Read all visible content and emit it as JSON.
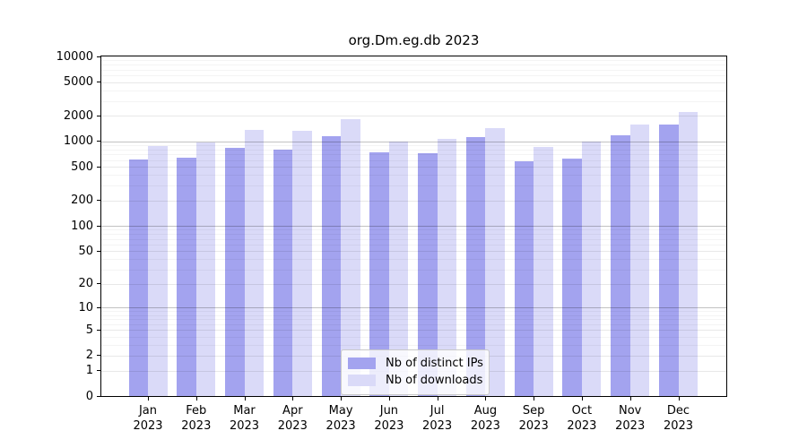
{
  "title": "org.Dm.eg.db 2023",
  "colors": {
    "spine": "#000000",
    "background": "#ffffff",
    "legend_border": "#c9c9c9",
    "distinct_ips": "#a3a3ef",
    "downloads": "#dadaf8"
  },
  "chart_data": {
    "type": "bar",
    "title": "org.Dm.eg.db 2023",
    "yscale": "log1p",
    "ylim": [
      0,
      10000
    ],
    "yticks": [
      0,
      1,
      2,
      5,
      10,
      20,
      50,
      100,
      200,
      500,
      1000,
      2000,
      5000,
      10000
    ],
    "minor_gridlines": [
      3,
      4,
      6,
      7,
      8,
      9,
      30,
      40,
      60,
      70,
      80,
      90,
      300,
      400,
      600,
      700,
      800,
      900,
      3000,
      4000,
      6000,
      7000,
      8000,
      9000
    ],
    "emphasized_gridlines": [
      10,
      100,
      1000
    ],
    "grid": true,
    "months": [
      "Jan",
      "Feb",
      "Mar",
      "Apr",
      "May",
      "Jun",
      "Jul",
      "Aug",
      "Sep",
      "Oct",
      "Nov",
      "Dec"
    ],
    "year": "2023",
    "categories": [
      "Jan 2023",
      "Feb 2023",
      "Mar 2023",
      "Apr 2023",
      "May 2023",
      "Jun 2023",
      "Jul 2023",
      "Aug 2023",
      "Sep 2023",
      "Oct 2023",
      "Nov 2023",
      "Dec 2023"
    ],
    "series": [
      {
        "name": "Nb of distinct IPs",
        "color": "#a3a3ef",
        "values": [
          610,
          635,
          830,
          790,
          1150,
          735,
          720,
          1120,
          585,
          625,
          1185,
          1575
        ]
      },
      {
        "name": "Nb of downloads",
        "color": "#dadaf8",
        "values": [
          880,
          970,
          1370,
          1320,
          1830,
          1000,
          1060,
          1430,
          860,
          1000,
          1590,
          2220
        ]
      }
    ],
    "legend_position": "lower center"
  }
}
